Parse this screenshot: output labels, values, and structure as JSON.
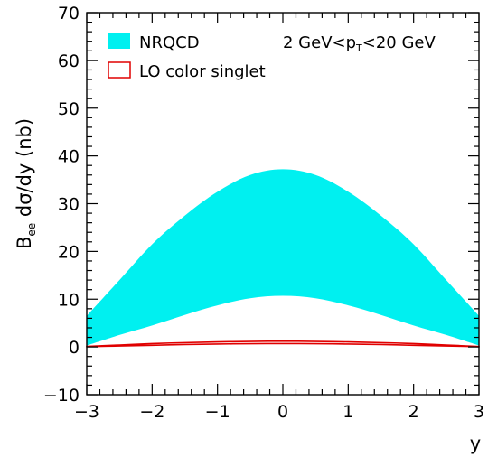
{
  "chart_data": {
    "type": "area",
    "title": "",
    "xlabel": "y",
    "ylabel": {
      "main": "B",
      "sub": "ee",
      "rest": " dσ/dy (nb)"
    },
    "xlim": [
      -3,
      3
    ],
    "ylim": [
      -10,
      70
    ],
    "x_ticks": [
      -3,
      -2,
      -1,
      0,
      1,
      2,
      3
    ],
    "x_tick_labels": [
      "−3",
      "−2",
      "−1",
      "0",
      "1",
      "2",
      "3"
    ],
    "y_ticks": [
      -10,
      0,
      10,
      20,
      30,
      40,
      50,
      60,
      70
    ],
    "y_tick_labels": [
      "−10",
      "0",
      "10",
      "20",
      "30",
      "40",
      "50",
      "60",
      "70"
    ],
    "grid": false,
    "legend_position": "top-left",
    "annotation": {
      "pre": "2 GeV<p",
      "sub": "T",
      "post": "<20 GeV"
    },
    "series": [
      {
        "name": "NRQCD",
        "style": "filled-band",
        "color": "#00f0f0",
        "x": [
          -3.0,
          -2.5,
          -2.0,
          -1.5,
          -1.0,
          -0.5,
          0.0,
          0.5,
          1.0,
          1.5,
          2.0,
          2.5,
          3.0
        ],
        "lower": [
          0.3,
          2.5,
          4.5,
          6.7,
          8.7,
          10.2,
          10.7,
          10.2,
          8.7,
          6.7,
          4.5,
          2.5,
          0.3
        ],
        "upper": [
          6.5,
          14.0,
          21.5,
          27.5,
          32.5,
          36.0,
          37.2,
          36.0,
          32.5,
          27.5,
          21.5,
          14.0,
          6.5
        ]
      },
      {
        "name": "LO color singlet",
        "style": "outlined-band",
        "color": "#e00000",
        "x": [
          -3.0,
          -2.5,
          -2.0,
          -1.5,
          -1.0,
          -0.5,
          0.0,
          0.5,
          1.0,
          1.5,
          2.0,
          2.5,
          3.0
        ],
        "lower": [
          0.05,
          0.2,
          0.35,
          0.5,
          0.6,
          0.68,
          0.7,
          0.68,
          0.6,
          0.5,
          0.35,
          0.2,
          0.05
        ],
        "upper": [
          0.1,
          0.4,
          0.7,
          0.9,
          1.05,
          1.15,
          1.2,
          1.15,
          1.05,
          0.9,
          0.7,
          0.4,
          0.1
        ]
      }
    ]
  }
}
